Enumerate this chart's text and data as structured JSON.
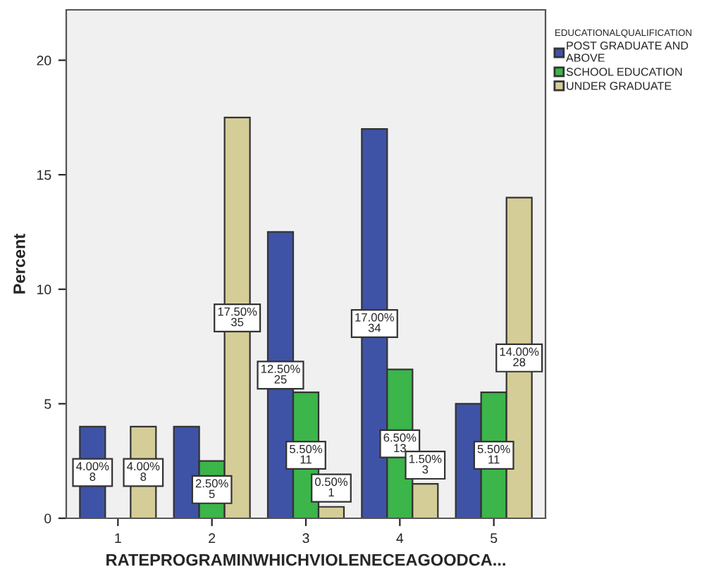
{
  "chart_data": {
    "type": "bar",
    "ylabel": "Percent",
    "xlabel": "RATEPROGRAMINWHICHVIOLENECEAGOODCA...",
    "legend_title": "EDUCATIONALQUALIFICATION",
    "categories": [
      "1",
      "2",
      "3",
      "4",
      "5"
    ],
    "series": [
      {
        "name": "POST GRADUATE AND\nABOVE",
        "color": "#3e53a6",
        "values": [
          4.0,
          4.0,
          12.5,
          17.0,
          5.0
        ],
        "value_labels": [
          "4.00%\n8",
          null,
          "12.50%\n25",
          "17.00%\n34",
          null
        ]
      },
      {
        "name": "SCHOOL EDUCATION",
        "color": "#3cb54a",
        "values": [
          null,
          2.5,
          5.5,
          6.5,
          5.5
        ],
        "value_labels": [
          null,
          "2.50%\n5",
          "5.50%\n11",
          "6.50%\n13",
          "5.50%\n11"
        ]
      },
      {
        "name": "UNDER GRADUATE",
        "color": "#d4cd97",
        "values": [
          4.0,
          17.5,
          0.5,
          1.5,
          14.0
        ],
        "value_labels": [
          "4.00%\n8",
          "17.50%\n35",
          "0.50%\n1",
          "1.50%\n3",
          "14.00%\n28"
        ]
      }
    ],
    "ylim": [
      0,
      22.2
    ],
    "yticks": [
      0,
      5,
      10,
      15,
      20
    ],
    "grid": false,
    "legend": "top right"
  }
}
